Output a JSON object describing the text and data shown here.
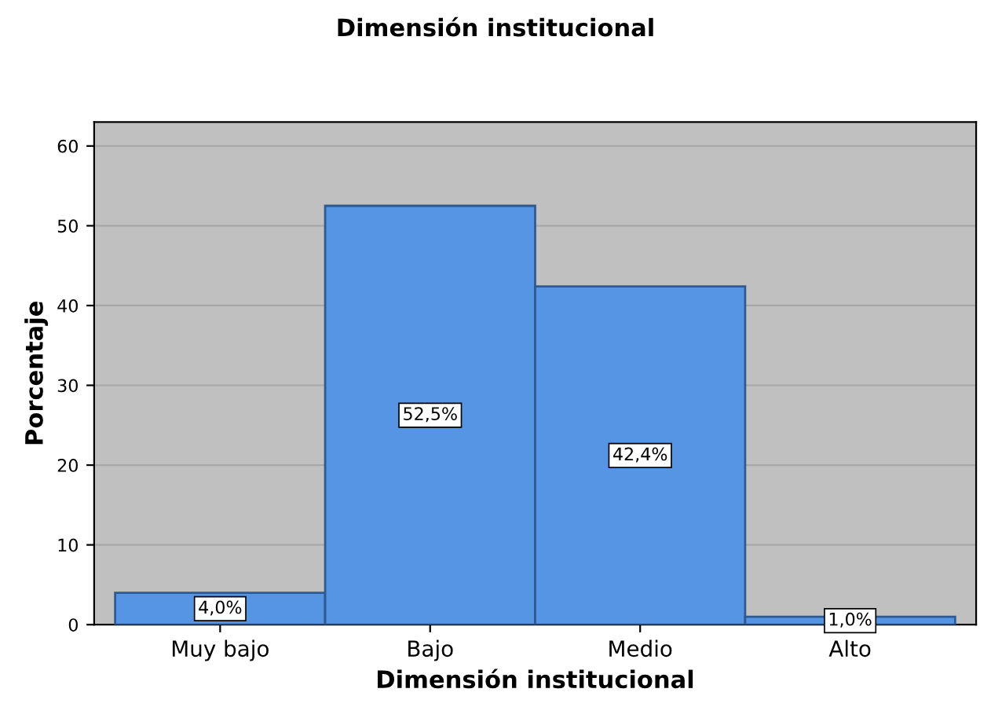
{
  "chart_data": {
    "type": "bar",
    "title": "Dimensión institucional",
    "xlabel": "Dimensión institucional",
    "ylabel": "Porcentaje",
    "categories": [
      "Muy bajo",
      "Bajo",
      "Medio",
      "Alto"
    ],
    "values": [
      4.0,
      52.5,
      42.4,
      1.0
    ],
    "value_labels": [
      "4,0%",
      "52,5%",
      "42,4%",
      "1,0%"
    ],
    "color": "#5595e3",
    "ylim": [
      0,
      63
    ],
    "yticks": [
      0,
      10,
      20,
      30,
      40,
      50,
      60
    ],
    "grid": "y"
  }
}
